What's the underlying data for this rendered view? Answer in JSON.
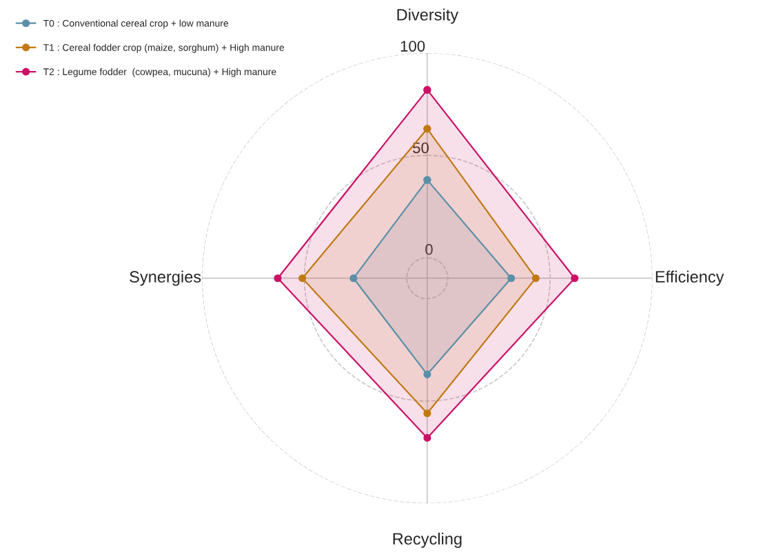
{
  "chart_data": {
    "type": "radar",
    "categories": [
      "Diversity",
      "Efficiency",
      "Recycling",
      "Synergies"
    ],
    "series": [
      {
        "name": "T0 : Conventional cereal crop + low manure",
        "color": "#5b8fa8",
        "values": [
          38,
          31,
          37,
          26
        ]
      },
      {
        "name": "T1 : Cereal fodder crop (maize, sorghum) + High manure",
        "color": "#c07a14",
        "values": [
          63,
          43,
          56,
          51
        ]
      },
      {
        "name": "T2 : Legume fodder  (cowpea, mucuna) + High manure",
        "color": "#cc1167",
        "values": [
          82,
          62,
          68,
          63
        ]
      }
    ],
    "ylim": [
      -10,
      100
    ],
    "yticks": [
      0,
      50,
      100
    ],
    "grid": true,
    "legend": "top left",
    "marker": "circle",
    "line_style": "solid"
  }
}
